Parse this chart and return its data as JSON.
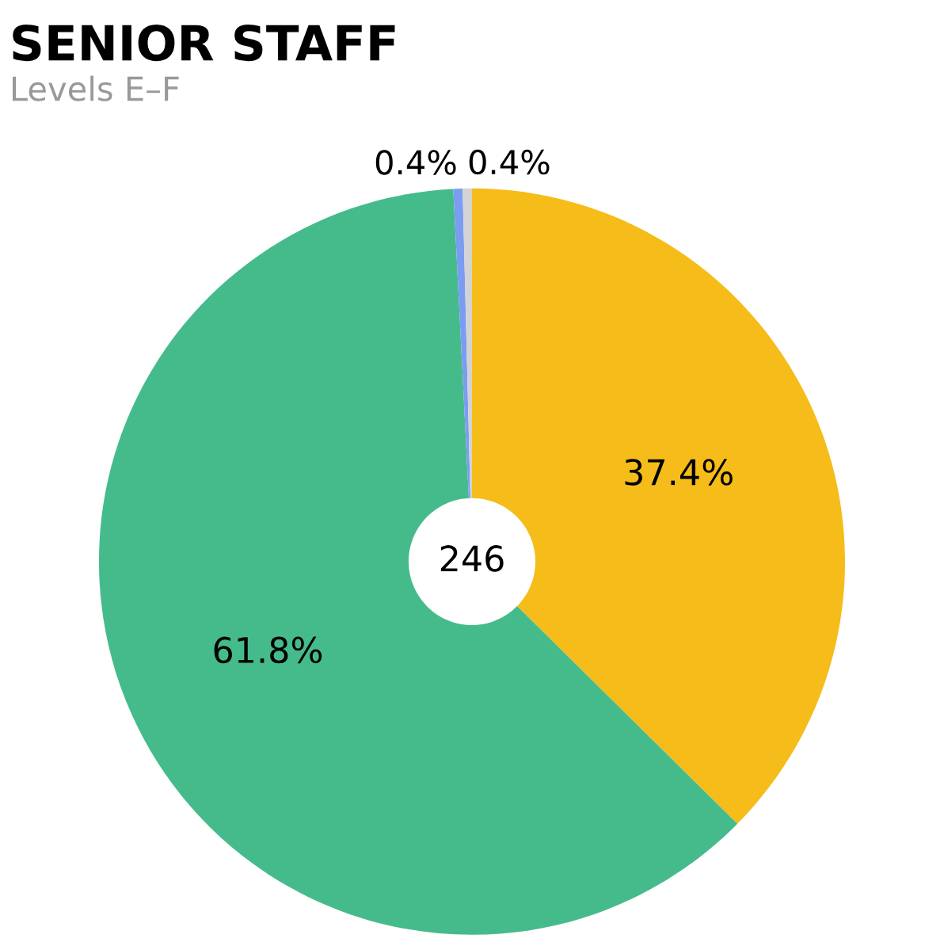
{
  "chart_data": {
    "type": "donut",
    "title": "SENIOR STAFF",
    "subtitle": "Levels E–F",
    "categories": [
      null,
      null,
      null,
      null
    ],
    "values": [
      37.4,
      61.8,
      0.4,
      0.4
    ],
    "colors": [
      "#f5bc1a",
      "#45bb8c",
      "#7b9cf0",
      "#d3d3d3"
    ],
    "value_labels": [
      "37.4%",
      "61.8%",
      "0.4%",
      "0.4%"
    ],
    "annotations": [
      "246"
    ],
    "legend": false
  }
}
